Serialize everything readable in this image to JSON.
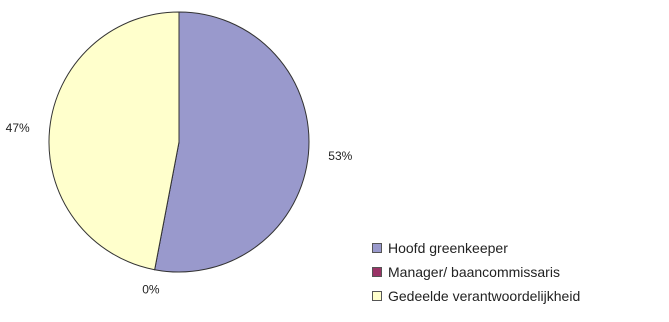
{
  "chart_data": {
    "type": "pie",
    "categories": [
      "Hoofd greenkeeper",
      "Manager/ baancommissaris",
      "Gedeelde verantwoordelijkheid"
    ],
    "values": [
      53,
      0,
      47
    ],
    "labels": [
      "53%",
      "0%",
      "47%"
    ],
    "colors": [
      "#9999cc",
      "#993366",
      "#ffffcc"
    ],
    "legend_position": "bottom-right",
    "start_angle": "12 o'clock",
    "direction": "clockwise"
  }
}
